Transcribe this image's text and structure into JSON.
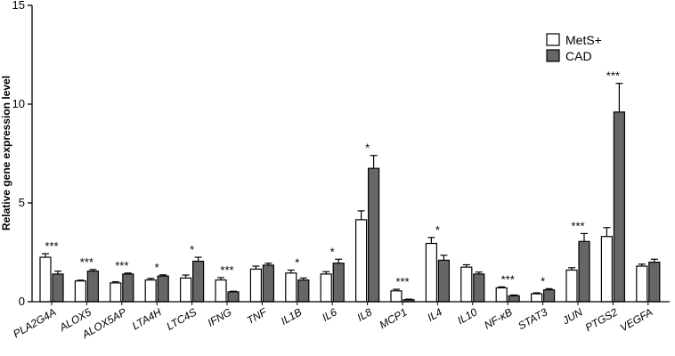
{
  "chart_data": {
    "type": "bar",
    "ylabel": "Relative gene expression level",
    "ylim": [
      0,
      15
    ],
    "yticks": [
      0,
      5,
      10,
      15
    ],
    "legend_placement": "top-right",
    "categories": [
      "PLA2G4A",
      "ALOX5",
      "ALOX5AP",
      "LTA4H",
      "LTC4S",
      "IFNG",
      "TNF",
      "IL1B",
      "IL6",
      "IL8",
      "MCP1",
      "IL4",
      "IL10",
      "NF-κB",
      "STAT3",
      "JUN",
      "PTGS2",
      "VEGFA"
    ],
    "series": [
      {
        "name": "MetS+",
        "color": "#ffffff",
        "values": [
          2.25,
          1.05,
          0.95,
          1.1,
          1.2,
          1.1,
          1.65,
          1.45,
          1.4,
          4.15,
          0.55,
          2.95,
          1.75,
          0.7,
          0.4,
          1.6,
          3.3,
          1.8
        ],
        "errors": [
          0.18,
          0.04,
          0.06,
          0.08,
          0.15,
          0.12,
          0.15,
          0.15,
          0.12,
          0.45,
          0.08,
          0.3,
          0.12,
          0.05,
          0.05,
          0.12,
          0.45,
          0.1
        ]
      },
      {
        "name": "CAD",
        "color": "#666666",
        "values": [
          1.4,
          1.55,
          1.4,
          1.3,
          2.05,
          0.5,
          1.85,
          1.1,
          1.95,
          6.75,
          0.1,
          2.1,
          1.4,
          0.3,
          0.6,
          3.05,
          9.6,
          2.0
        ],
        "errors": [
          0.15,
          0.08,
          0.05,
          0.06,
          0.2,
          0.03,
          0.1,
          0.1,
          0.2,
          0.65,
          0.03,
          0.25,
          0.1,
          0.04,
          0.06,
          0.4,
          1.45,
          0.15
        ]
      }
    ],
    "significance": [
      "***",
      "***",
      "***",
      "*",
      "*",
      "***",
      "",
      "*",
      "*",
      "*",
      "***",
      "*",
      "",
      "***",
      "*",
      "***",
      "***",
      ""
    ]
  }
}
